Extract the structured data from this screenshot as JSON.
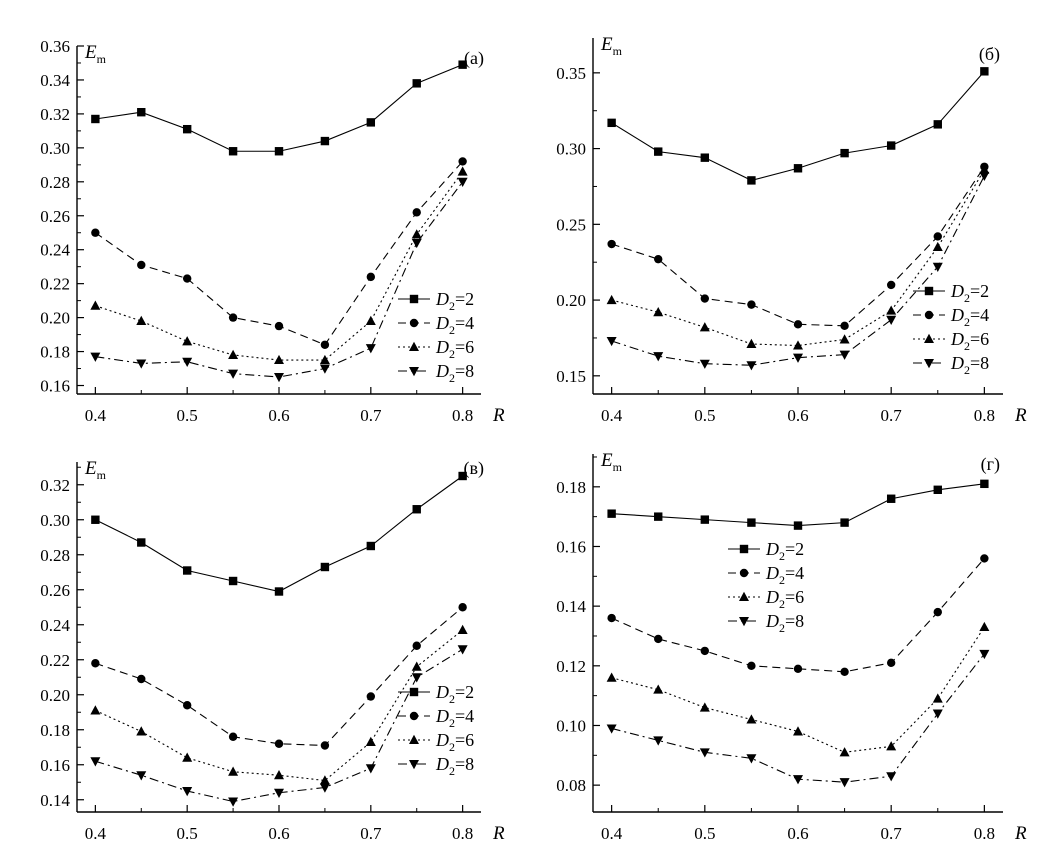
{
  "chart_data": [
    {
      "type": "line",
      "panel_label": "(a)",
      "ylabel": "E",
      "ylabel_sub": "m",
      "xlabel": "R",
      "x": [
        0.4,
        0.45,
        0.5,
        0.55,
        0.6,
        0.65,
        0.7,
        0.75,
        0.8
      ],
      "xlim": [
        0.38,
        0.82
      ],
      "xticks": [
        "0.4",
        "0.5",
        "0.6",
        "0.7",
        "0.8"
      ],
      "ylim": [
        0.155,
        0.36
      ],
      "yticks": [
        "0.16",
        "0.18",
        "0.20",
        "0.22",
        "0.24",
        "0.26",
        "0.28",
        "0.30",
        "0.32",
        "0.34",
        "0.36"
      ],
      "legend_position": "lower-right",
      "series": [
        {
          "name": "D",
          "sub": "2",
          "eq": "=2",
          "marker": "square",
          "dash": "solid",
          "values": [
            0.317,
            0.321,
            0.311,
            0.298,
            0.298,
            0.304,
            0.315,
            0.338,
            0.349
          ]
        },
        {
          "name": "D",
          "sub": "2",
          "eq": "=4",
          "marker": "circle",
          "dash": "dash",
          "values": [
            0.25,
            0.231,
            0.223,
            0.2,
            0.195,
            0.184,
            0.224,
            0.262,
            0.292
          ]
        },
        {
          "name": "D",
          "sub": "2",
          "eq": "=6",
          "marker": "triangle-up",
          "dash": "dot",
          "values": [
            0.207,
            0.198,
            0.186,
            0.178,
            0.175,
            0.175,
            0.198,
            0.249,
            0.286
          ]
        },
        {
          "name": "D",
          "sub": "2",
          "eq": "=8",
          "marker": "triangle-down",
          "dash": "dashdot",
          "values": [
            0.177,
            0.173,
            0.174,
            0.167,
            0.165,
            0.17,
            0.182,
            0.244,
            0.28
          ]
        }
      ]
    },
    {
      "type": "line",
      "panel_label": "(б)",
      "ylabel": "E",
      "ylabel_sub": "m",
      "xlabel": "R",
      "x": [
        0.4,
        0.45,
        0.5,
        0.55,
        0.6,
        0.65,
        0.7,
        0.75,
        0.8
      ],
      "xlim": [
        0.38,
        0.82
      ],
      "xticks": [
        "0.4",
        "0.5",
        "0.6",
        "0.7",
        "0.8"
      ],
      "ylim": [
        0.138,
        0.373
      ],
      "yticks": [
        "0.15",
        "0.20",
        "0.25",
        "0.30",
        "0.35"
      ],
      "legend_position": "lower-right",
      "series": [
        {
          "name": "D",
          "sub": "2",
          "eq": "=2",
          "marker": "square",
          "dash": "solid",
          "values": [
            0.317,
            0.298,
            0.294,
            0.279,
            0.287,
            0.297,
            0.302,
            0.316,
            0.351
          ]
        },
        {
          "name": "D",
          "sub": "2",
          "eq": "=4",
          "marker": "circle",
          "dash": "dash",
          "values": [
            0.237,
            0.227,
            0.201,
            0.197,
            0.184,
            0.183,
            0.21,
            0.242,
            0.288
          ]
        },
        {
          "name": "D",
          "sub": "2",
          "eq": "=6",
          "marker": "triangle-up",
          "dash": "dot",
          "values": [
            0.2,
            0.192,
            0.182,
            0.171,
            0.17,
            0.174,
            0.193,
            0.235,
            0.286
          ]
        },
        {
          "name": "D",
          "sub": "2",
          "eq": "=8",
          "marker": "triangle-down",
          "dash": "dashdot",
          "values": [
            0.173,
            0.163,
            0.158,
            0.157,
            0.162,
            0.164,
            0.187,
            0.222,
            0.282
          ]
        }
      ]
    },
    {
      "type": "line",
      "panel_label": "(в)",
      "ylabel": "E",
      "ylabel_sub": "m",
      "xlabel": "R",
      "x": [
        0.4,
        0.45,
        0.5,
        0.55,
        0.6,
        0.65,
        0.7,
        0.75,
        0.8
      ],
      "xlim": [
        0.38,
        0.82
      ],
      "xticks": [
        "0.4",
        "0.5",
        "0.6",
        "0.7",
        "0.8"
      ],
      "ylim": [
        0.133,
        0.333
      ],
      "yticks": [
        "0.14",
        "0.16",
        "0.18",
        "0.20",
        "0.22",
        "0.24",
        "0.26",
        "0.28",
        "0.30",
        "0.32"
      ],
      "legend_position": "lower-right",
      "series": [
        {
          "name": "D",
          "sub": "2",
          "eq": "=2",
          "marker": "square",
          "dash": "solid",
          "values": [
            0.3,
            0.287,
            0.271,
            0.265,
            0.259,
            0.273,
            0.285,
            0.306,
            0.325
          ]
        },
        {
          "name": "D",
          "sub": "2",
          "eq": "=4",
          "marker": "circle",
          "dash": "dash",
          "values": [
            0.218,
            0.209,
            0.194,
            0.176,
            0.172,
            0.171,
            0.199,
            0.228,
            0.25
          ]
        },
        {
          "name": "D",
          "sub": "2",
          "eq": "=6",
          "marker": "triangle-up",
          "dash": "dot",
          "values": [
            0.191,
            0.179,
            0.164,
            0.156,
            0.154,
            0.151,
            0.173,
            0.216,
            0.237
          ]
        },
        {
          "name": "D",
          "sub": "2",
          "eq": "=8",
          "marker": "triangle-down",
          "dash": "dashdot",
          "values": [
            0.162,
            0.154,
            0.145,
            0.139,
            0.144,
            0.147,
            0.158,
            0.21,
            0.226
          ]
        }
      ]
    },
    {
      "type": "line",
      "panel_label": "(г)",
      "ylabel": "E",
      "ylabel_sub": "m",
      "xlabel": "R",
      "x": [
        0.4,
        0.45,
        0.5,
        0.55,
        0.6,
        0.65,
        0.7,
        0.75,
        0.8
      ],
      "xlim": [
        0.38,
        0.82
      ],
      "xticks": [
        "0.4",
        "0.5",
        "0.6",
        "0.7",
        "0.8"
      ],
      "ylim": [
        0.071,
        0.191
      ],
      "yticks": [
        "0.08",
        "0.10",
        "0.12",
        "0.14",
        "0.16",
        "0.18"
      ],
      "legend_position": "upper-middle",
      "series": [
        {
          "name": "D",
          "sub": "2",
          "eq": "=2",
          "marker": "square",
          "dash": "solid",
          "values": [
            0.171,
            0.17,
            0.169,
            0.168,
            0.167,
            0.168,
            0.176,
            0.179,
            0.181
          ]
        },
        {
          "name": "D",
          "sub": "2",
          "eq": "=4",
          "marker": "circle",
          "dash": "dash",
          "values": [
            0.136,
            0.129,
            0.125,
            0.12,
            0.119,
            0.118,
            0.121,
            0.138,
            0.156
          ]
        },
        {
          "name": "D",
          "sub": "2",
          "eq": "=6",
          "marker": "triangle-up",
          "dash": "dot",
          "values": [
            0.116,
            0.112,
            0.106,
            0.102,
            0.098,
            0.091,
            0.093,
            0.109,
            0.133
          ]
        },
        {
          "name": "D",
          "sub": "2",
          "eq": "=8",
          "marker": "triangle-down",
          "dash": "dashdot",
          "values": [
            0.099,
            0.095,
            0.091,
            0.089,
            0.082,
            0.081,
            0.083,
            0.104,
            0.124
          ]
        }
      ]
    }
  ]
}
